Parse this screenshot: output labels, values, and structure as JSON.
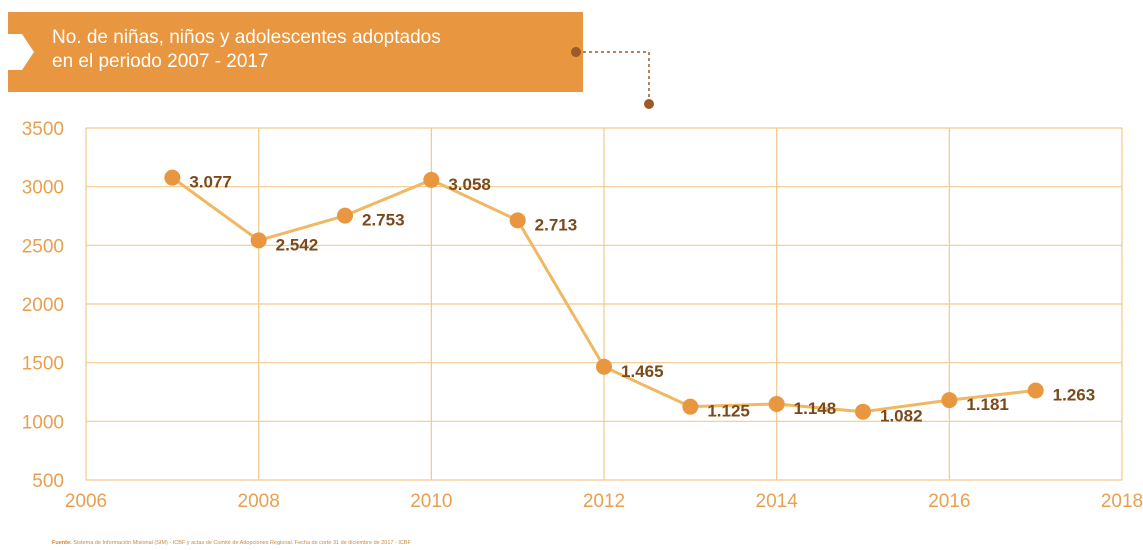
{
  "header": {
    "title_line1": "No. de niñas, niños y adolescentes adoptados",
    "title_line2": "en el periodo 2007 - 2017"
  },
  "colors": {
    "banner": "#E8963F",
    "line": "#F0B862",
    "marker": "#E8963F",
    "grid": "#F2C98C",
    "tick_text": "#E8A050",
    "data_label": "#7A4A1C",
    "connector": "#9A5A2A"
  },
  "footnote": {
    "label": "Fuente:",
    "text": "Sistema de Información Misional (SIM) - ICBF y actas de Comité de Adopciones Regional. Fecha de corte 31 de diciembre de 2017 - ICBF"
  },
  "chart_data": {
    "type": "line",
    "x": [
      2007,
      2008,
      2009,
      2010,
      2011,
      2012,
      2013,
      2014,
      2015,
      2016,
      2017
    ],
    "series": [
      {
        "values": [
          3077,
          2542,
          2753,
          3058,
          2713,
          1465,
          1125,
          1148,
          1082,
          1181,
          1263
        ],
        "labels": [
          "3.077",
          "2.542",
          "2.753",
          "3.058",
          "2.713",
          "1.465",
          "1.125",
          "1.148",
          "1.082",
          "1.181",
          "1.263"
        ]
      }
    ],
    "xlim": [
      2006,
      2018
    ],
    "ylim": [
      500,
      3500
    ],
    "x_ticks": [
      2006,
      2008,
      2010,
      2012,
      2014,
      2016,
      2018
    ],
    "y_ticks": [
      500,
      1000,
      1500,
      2000,
      2500,
      3000,
      3500
    ],
    "grid": true,
    "legend": "none"
  }
}
